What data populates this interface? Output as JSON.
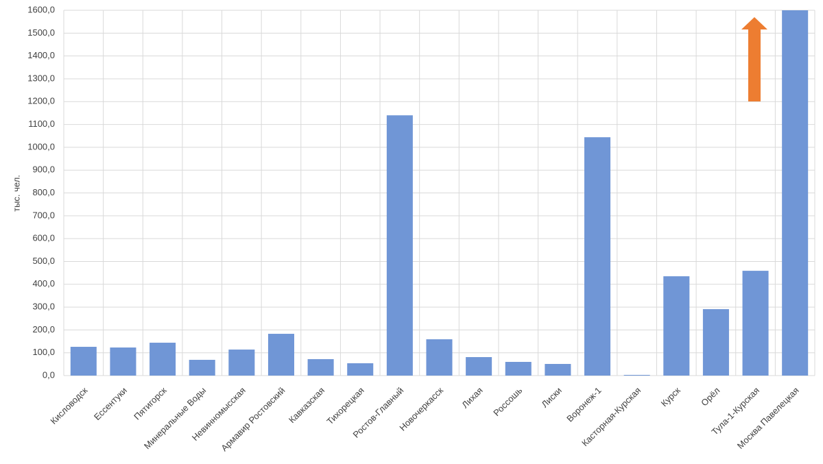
{
  "chart_data": {
    "type": "bar",
    "y_label": "тыс. чел.",
    "categories": [
      "Кисловодск",
      "Ессентуки",
      "Пятигорск",
      "Минеральные Воды",
      "Невинномысская",
      "Армавир Ростовский",
      "Кавказская",
      "Тихорецкая",
      "Ростов-Главный",
      "Новочеркасск",
      "Лихая",
      "Россошь",
      "Лиски",
      "Воронеж-1",
      "Касторная-Курская",
      "Курск",
      "Орёл",
      "Тула-1-Курская",
      "Москва Павелецкая"
    ],
    "values": [
      126,
      123,
      144,
      69,
      114,
      183,
      72,
      54,
      1140,
      159,
      81,
      60,
      51,
      1044,
      3,
      435,
      291,
      459,
      1600
    ],
    "color": "#7096d6",
    "ylim": [
      0,
      1600
    ],
    "yticks": [
      {
        "value": 0,
        "label": "0,0"
      },
      {
        "value": 100,
        "label": "100,0"
      },
      {
        "value": 200,
        "label": "200,0"
      },
      {
        "value": 300,
        "label": "300,0"
      },
      {
        "value": 400,
        "label": "400,0"
      },
      {
        "value": 500,
        "label": "500,0"
      },
      {
        "value": 600,
        "label": "600,0"
      },
      {
        "value": 700,
        "label": "700,0"
      },
      {
        "value": 800,
        "label": "800,0"
      },
      {
        "value": 900,
        "label": "900,0"
      },
      {
        "value": 1000,
        "label": "1000,0"
      },
      {
        "value": 1100,
        "label": "1100,0"
      },
      {
        "value": 1200,
        "label": "1200,0"
      },
      {
        "value": 1300,
        "label": "1300,0"
      },
      {
        "value": 1400,
        "label": "1400,0"
      },
      {
        "value": 1500,
        "label": "1500,0"
      },
      {
        "value": 1600,
        "label": "1600,0"
      }
    ],
    "grid": true
  }
}
